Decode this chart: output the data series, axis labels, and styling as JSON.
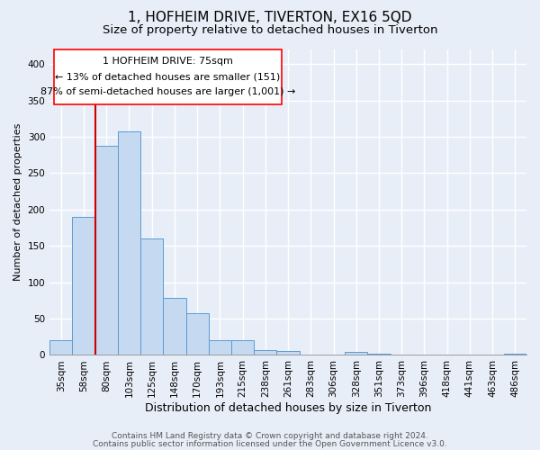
{
  "title": "1, HOFHEIM DRIVE, TIVERTON, EX16 5QD",
  "subtitle": "Size of property relative to detached houses in Tiverton",
  "xlabel": "Distribution of detached houses by size in Tiverton",
  "ylabel": "Number of detached properties",
  "bar_labels": [
    "35sqm",
    "58sqm",
    "80sqm",
    "103sqm",
    "125sqm",
    "148sqm",
    "170sqm",
    "193sqm",
    "215sqm",
    "238sqm",
    "261sqm",
    "283sqm",
    "306sqm",
    "328sqm",
    "351sqm",
    "373sqm",
    "396sqm",
    "418sqm",
    "441sqm",
    "463sqm",
    "486sqm"
  ],
  "bar_values": [
    20,
    190,
    287,
    308,
    160,
    79,
    57,
    20,
    20,
    7,
    6,
    0,
    0,
    4,
    2,
    0,
    0,
    0,
    0,
    0,
    2
  ],
  "bar_color": "#c5d9f0",
  "bar_edge_color": "#5b9bd5",
  "ref_line_color": "#cc0000",
  "annotation_line1": "1 HOFHEIM DRIVE: 75sqm",
  "annotation_line2": "← 13% of detached houses are smaller (151)",
  "annotation_line3": "87% of semi-detached houses are larger (1,001) →",
  "ylim": [
    0,
    420
  ],
  "yticks": [
    0,
    50,
    100,
    150,
    200,
    250,
    300,
    350,
    400
  ],
  "footer_line1": "Contains HM Land Registry data © Crown copyright and database right 2024.",
  "footer_line2": "Contains public sector information licensed under the Open Government Licence v3.0.",
  "background_color": "#e8eef8",
  "plot_bg_color": "#e8eef8",
  "grid_color": "#ffffff",
  "title_fontsize": 11,
  "subtitle_fontsize": 9.5,
  "xlabel_fontsize": 9,
  "ylabel_fontsize": 8,
  "tick_fontsize": 7.5,
  "footer_fontsize": 6.5,
  "ann_fontsize": 8
}
